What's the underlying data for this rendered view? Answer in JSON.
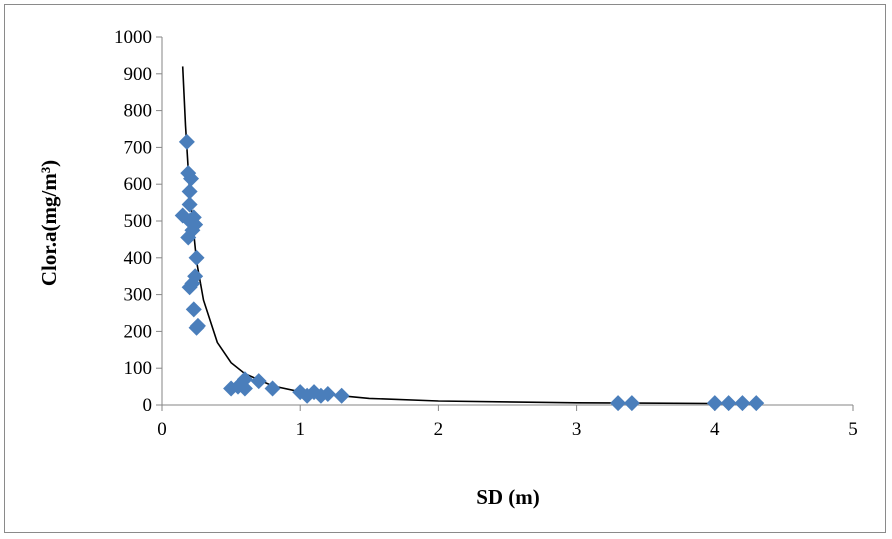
{
  "chart_data": {
    "type": "scatter",
    "xlabel": "SD (m)",
    "ylabel": "Clor.a(mg/m³)",
    "xlim": [
      0,
      5
    ],
    "ylim": [
      0,
      1000
    ],
    "x_ticks": [
      0,
      1,
      2,
      3,
      4,
      5
    ],
    "y_ticks": [
      0,
      100,
      200,
      300,
      400,
      500,
      600,
      700,
      800,
      900,
      1000
    ],
    "grid": false,
    "legend": "none",
    "marker": "diamond",
    "marker_color": "#4a7ebb",
    "series": [
      {
        "points": [
          [
            0.18,
            715
          ],
          [
            0.19,
            630
          ],
          [
            0.21,
            615
          ],
          [
            0.2,
            580
          ],
          [
            0.2,
            545
          ],
          [
            0.15,
            515
          ],
          [
            0.23,
            510
          ],
          [
            0.2,
            500
          ],
          [
            0.24,
            490
          ],
          [
            0.22,
            475
          ],
          [
            0.19,
            455
          ],
          [
            0.25,
            400
          ],
          [
            0.24,
            350
          ],
          [
            0.22,
            330
          ],
          [
            0.2,
            320
          ],
          [
            0.23,
            260
          ],
          [
            0.26,
            215
          ],
          [
            0.25,
            210
          ],
          [
            0.5,
            45
          ],
          [
            0.55,
            50
          ],
          [
            0.6,
            70
          ],
          [
            0.6,
            45
          ],
          [
            0.7,
            65
          ],
          [
            0.8,
            45
          ],
          [
            1.0,
            35
          ],
          [
            1.05,
            25
          ],
          [
            1.1,
            35
          ],
          [
            1.15,
            25
          ],
          [
            1.2,
            30
          ],
          [
            1.3,
            25
          ],
          [
            3.3,
            5
          ],
          [
            3.4,
            5
          ],
          [
            4.0,
            5
          ],
          [
            4.1,
            5
          ],
          [
            4.2,
            5
          ],
          [
            4.3,
            5
          ]
        ]
      }
    ],
    "trendline": {
      "type": "power",
      "color": "#000000",
      "x_range": [
        0.15,
        4.3
      ],
      "points": [
        [
          0.15,
          920
        ],
        [
          0.17,
          760
        ],
        [
          0.2,
          580
        ],
        [
          0.25,
          390
        ],
        [
          0.3,
          285
        ],
        [
          0.4,
          170
        ],
        [
          0.5,
          115
        ],
        [
          0.6,
          85
        ],
        [
          0.8,
          52
        ],
        [
          1.0,
          36
        ],
        [
          1.5,
          18
        ],
        [
          2.0,
          11
        ],
        [
          3.0,
          6
        ],
        [
          4.0,
          4
        ],
        [
          4.3,
          3.5
        ]
      ]
    }
  }
}
